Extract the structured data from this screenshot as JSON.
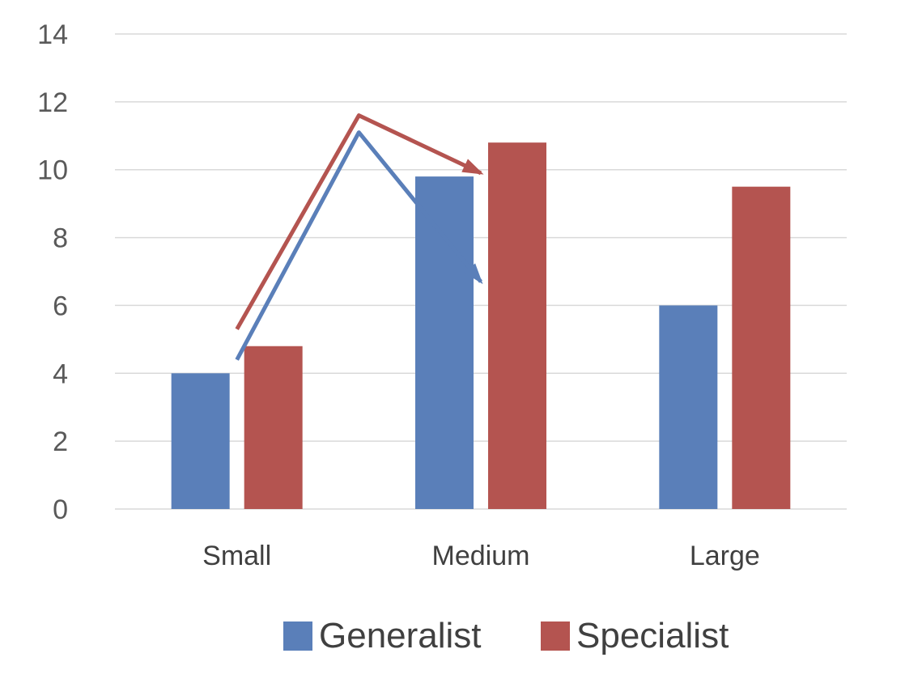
{
  "chart_data": {
    "type": "bar",
    "categories": [
      "Small",
      "Medium",
      "Large"
    ],
    "series": [
      {
        "name": "Generalist",
        "values": [
          4.0,
          9.8,
          6.0
        ],
        "color": "#5a7fb9"
      },
      {
        "name": "Specialist",
        "values": [
          4.8,
          10.8,
          9.5
        ],
        "color": "#b45450"
      }
    ],
    "trend_arrows": [
      {
        "series": "Generalist",
        "color": "#5a7fb9",
        "points": [
          [
            0.5,
            4.4
          ],
          [
            1.0,
            11.1
          ],
          [
            1.5,
            6.7
          ]
        ]
      },
      {
        "series": "Specialist",
        "color": "#b45450",
        "points": [
          [
            0.5,
            5.3
          ],
          [
            1.0,
            11.6
          ],
          [
            1.5,
            9.9
          ]
        ]
      }
    ],
    "title": "",
    "xlabel": "",
    "ylabel": "",
    "ylim": [
      0,
      14
    ],
    "yticks": [
      "0",
      "2",
      "4",
      "6",
      "8",
      "10",
      "12",
      "14"
    ],
    "grid": true,
    "legend_position": "bottom"
  }
}
